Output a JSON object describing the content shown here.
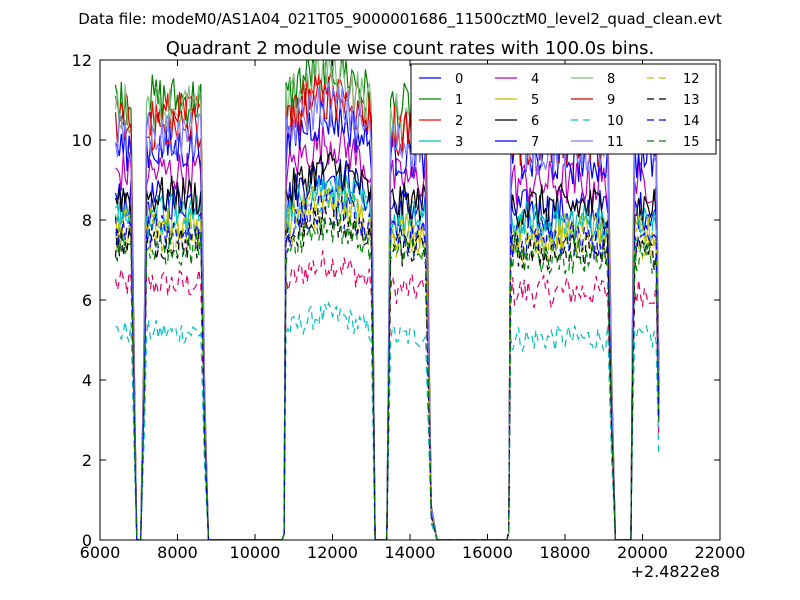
{
  "chart_data": {
    "type": "line",
    "suptitle": "Data file: modeM0/AS1A04_021T05_9000001686_11500cztM0_level2_quad_clean.evt",
    "title": "Quadrant 2 module wise count rates with 100.0s bins.",
    "xlabel": "",
    "ylabel": "",
    "x_offset_label": "+2.4822e8",
    "xlim": [
      6000,
      22000
    ],
    "ylim": [
      0,
      12
    ],
    "xticks": [
      6000,
      8000,
      10000,
      12000,
      14000,
      16000,
      18000,
      20000,
      22000
    ],
    "yticks": [
      0,
      2,
      4,
      6,
      8,
      10,
      12
    ],
    "legend_location": "top-right",
    "legend_columns": 4,
    "segments": [
      {
        "x_start": 6400,
        "x_end": 6800
      },
      {
        "x_start": 7200,
        "x_end": 8600
      },
      {
        "x_start": 10800,
        "x_end": 13000
      },
      {
        "x_start": 13500,
        "x_end": 14400
      },
      {
        "x_start": 16600,
        "x_end": 19100
      },
      {
        "x_start": 19800,
        "x_end": 20400
      }
    ],
    "zero_ranges": [
      [
        7000,
        7100
      ],
      [
        8800,
        10700
      ],
      [
        13100,
        13400
      ],
      [
        14700,
        16500
      ],
      [
        19300,
        19700
      ]
    ],
    "series": [
      {
        "name": "0",
        "color": "#0000ff",
        "dash": "solid",
        "level": 8.5
      },
      {
        "name": "1",
        "color": "#008000",
        "dash": "solid",
        "level": 11.0
      },
      {
        "name": "2",
        "color": "#ff0000",
        "dash": "solid",
        "level": 10.6
      },
      {
        "name": "3",
        "color": "#00bfbf",
        "dash": "solid",
        "level": 8.2
      },
      {
        "name": "4",
        "color": "#bf00bf",
        "dash": "solid",
        "level": 9.2
      },
      {
        "name": "5",
        "color": "#bfbf00",
        "dash": "solid",
        "level": 7.9
      },
      {
        "name": "6",
        "color": "#000000",
        "dash": "solid",
        "level": 8.6
      },
      {
        "name": "7",
        "color": "#0000ff",
        "dash": "solid",
        "level": 9.8
      },
      {
        "name": "8",
        "color": "#7fbf7f",
        "dash": "solid",
        "level": 10.8
      },
      {
        "name": "9",
        "color": "#cc0000",
        "dash": "solid",
        "level": 10.3
      },
      {
        "name": "10",
        "color": "#00bfbf",
        "dash": "dashed",
        "level": 8.0
      },
      {
        "name": "11",
        "color": "#7f7fff",
        "dash": "solid",
        "level": 10.1
      },
      {
        "name": "12",
        "color": "#bfbf00",
        "dash": "dashed",
        "level": 7.6
      },
      {
        "name": "13",
        "color": "#000000",
        "dash": "dashed",
        "level": 7.4
      },
      {
        "name": "14",
        "color": "#0000ff",
        "dash": "dashed",
        "level": 7.7
      },
      {
        "name": "15",
        "color": "#008000",
        "dash": "dashed",
        "level": 7.3
      }
    ],
    "extra_series": [
      {
        "color": "#dd0066",
        "dash": "dashed",
        "level": 6.4
      },
      {
        "color": "#00bfbf",
        "dash": "dashed",
        "level": 5.2
      }
    ]
  }
}
